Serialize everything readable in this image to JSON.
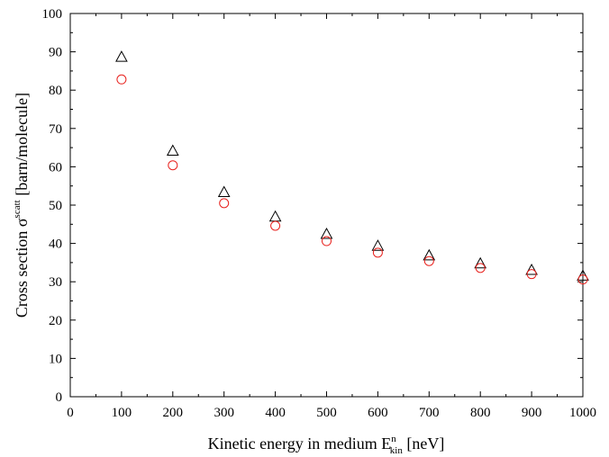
{
  "chart_data": {
    "type": "scatter",
    "xlabel": {
      "main": "Kinetic energy in medium E",
      "superscript": "n",
      "subscript": "kin",
      "unit": " [neV]"
    },
    "ylabel": {
      "main": "Cross section σ",
      "superscript": "scatt",
      "unit": " [barn/molecule]"
    },
    "xlim": [
      0,
      1000
    ],
    "ylim": [
      0,
      100
    ],
    "xticks": [
      0,
      100,
      200,
      300,
      400,
      500,
      600,
      700,
      800,
      900,
      1000
    ],
    "yticks": [
      0,
      10,
      20,
      30,
      40,
      50,
      60,
      70,
      80,
      90,
      100
    ],
    "x_minor_step": 50,
    "y_minor_step": 5,
    "grid": false,
    "series": [
      {
        "marker": "triangle",
        "color": "#000000",
        "x": [
          100,
          200,
          300,
          400,
          500,
          600,
          700,
          800,
          900,
          1000
        ],
        "y": [
          88.5,
          64.0,
          53.2,
          46.8,
          42.3,
          39.2,
          36.7,
          34.6,
          32.9,
          31.4
        ]
      },
      {
        "marker": "circle",
        "color": "#e8221e",
        "x": [
          100,
          200,
          300,
          400,
          500,
          600,
          700,
          800,
          900,
          1000
        ],
        "y": [
          82.8,
          60.4,
          50.5,
          44.6,
          40.6,
          37.6,
          35.4,
          33.6,
          32.0,
          30.6
        ]
      }
    ]
  }
}
